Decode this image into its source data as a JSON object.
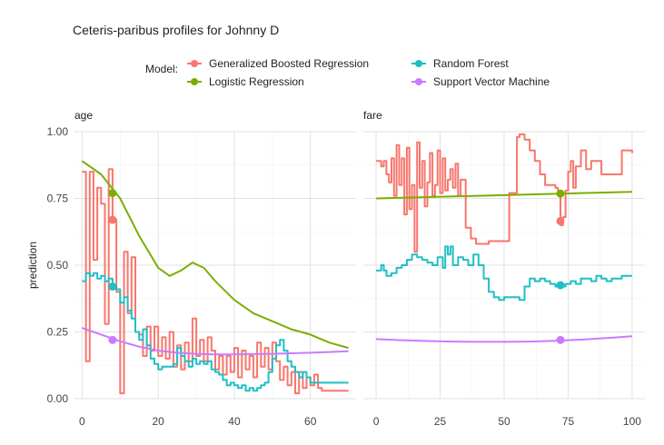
{
  "chart_data": {
    "type": "line",
    "title": "Ceteris-paribus profiles for Johnny D",
    "ylabel": "prediction",
    "legend": {
      "title": "Model:",
      "placement": "top",
      "entries": [
        {
          "name": "Generalized Boosted Regression",
          "color": "#F8766D"
        },
        {
          "name": "Random Forest",
          "color": "#1FBFC4"
        },
        {
          "name": "Logistic Regression",
          "color": "#7CAE00"
        },
        {
          "name": "Support Vector Machine",
          "color": "#C77CFF"
        }
      ]
    },
    "ylim": [
      0,
      1
    ],
    "yticks": [
      0,
      0.25,
      0.5,
      0.75,
      1
    ],
    "ytick_labels": [
      "0.00",
      "0.25",
      "0.50",
      "0.75",
      "1.00"
    ],
    "grid": true,
    "panels": [
      {
        "label": "age",
        "xlim": [
          -2,
          72
        ],
        "xticks": [
          0,
          20,
          40,
          60
        ],
        "xtick_labels": [
          "0",
          "20",
          "40",
          "60"
        ],
        "observation": {
          "x": 8
        },
        "series": [
          {
            "name": "Generalized Boosted Regression",
            "step": true,
            "x": [
              0,
              1,
              2,
              3,
              4,
              5,
              6,
              7,
              8,
              9,
              10,
              11,
              12,
              13,
              14,
              15,
              16,
              17,
              18,
              19,
              20,
              21,
              22,
              23,
              24,
              25,
              26,
              27,
              28,
              29,
              30,
              31,
              32,
              33,
              34,
              35,
              36,
              37,
              38,
              39,
              40,
              41,
              42,
              43,
              44,
              45,
              46,
              47,
              48,
              49,
              50,
              51,
              52,
              53,
              54,
              55,
              56,
              57,
              58,
              59,
              60,
              61,
              62,
              63,
              64,
              65,
              66,
              67,
              68,
              69,
              70
            ],
            "y": [
              0.85,
              0.14,
              0.85,
              0.52,
              0.79,
              0.73,
              0.28,
              0.86,
              0.67,
              0.4,
              0.02,
              0.55,
              0.32,
              0.53,
              0.25,
              0.24,
              0.16,
              0.27,
              0.18,
              0.27,
              0.16,
              0.23,
              0.15,
              0.25,
              0.12,
              0.2,
              0.11,
              0.21,
              0.14,
              0.3,
              0.16,
              0.22,
              0.14,
              0.23,
              0.18,
              0.11,
              0.16,
              0.09,
              0.16,
              0.1,
              0.19,
              0.08,
              0.18,
              0.11,
              0.16,
              0.08,
              0.21,
              0.12,
              0.19,
              0.11,
              0.21,
              0.14,
              0.07,
              0.12,
              0.05,
              0.1,
              0.02,
              0.1,
              0.04,
              0.08,
              0.05,
              0.09,
              0.04,
              0.03,
              0.03,
              0.03,
              0.03,
              0.03,
              0.03,
              0.03,
              0.03
            ]
          },
          {
            "name": "Random Forest",
            "step": true,
            "x": [
              0,
              1,
              2,
              3,
              4,
              5,
              6,
              7,
              8,
              9,
              10,
              11,
              12,
              13,
              14,
              15,
              16,
              17,
              18,
              19,
              20,
              21,
              22,
              23,
              24,
              25,
              26,
              27,
              28,
              29,
              30,
              31,
              32,
              33,
              34,
              35,
              36,
              37,
              38,
              39,
              40,
              41,
              42,
              43,
              44,
              45,
              46,
              47,
              48,
              49,
              50,
              51,
              52,
              53,
              54,
              55,
              56,
              57,
              58,
              59,
              60,
              61,
              62,
              63,
              64,
              65,
              66,
              67,
              68,
              69,
              70
            ],
            "y": [
              0.44,
              0.47,
              0.46,
              0.47,
              0.45,
              0.46,
              0.44,
              0.45,
              0.42,
              0.41,
              0.36,
              0.38,
              0.33,
              0.3,
              0.25,
              0.22,
              0.26,
              0.2,
              0.15,
              0.13,
              0.11,
              0.12,
              0.12,
              0.12,
              0.13,
              0.19,
              0.16,
              0.14,
              0.12,
              0.15,
              0.13,
              0.14,
              0.13,
              0.14,
              0.11,
              0.1,
              0.09,
              0.07,
              0.05,
              0.06,
              0.05,
              0.04,
              0.05,
              0.03,
              0.04,
              0.03,
              0.04,
              0.05,
              0.06,
              0.1,
              0.15,
              0.2,
              0.22,
              0.18,
              0.14,
              0.12,
              0.1,
              0.08,
              0.1,
              0.08,
              0.06,
              0.06,
              0.06,
              0.06,
              0.06,
              0.06,
              0.06,
              0.06,
              0.06,
              0.06,
              0.06
            ]
          },
          {
            "name": "Logistic Regression",
            "step": false,
            "x": [
              0,
              5,
              10,
              15,
              20,
              23,
              26,
              29,
              32,
              35,
              40,
              45,
              50,
              55,
              60,
              65,
              70
            ],
            "y": [
              0.89,
              0.84,
              0.75,
              0.61,
              0.49,
              0.46,
              0.48,
              0.51,
              0.49,
              0.44,
              0.37,
              0.32,
              0.29,
              0.26,
              0.24,
              0.21,
              0.19
            ]
          },
          {
            "name": "Support Vector Machine",
            "step": false,
            "x": [
              0,
              5,
              10,
              15,
              20,
              25,
              30,
              35,
              40,
              45,
              50,
              55,
              60,
              65,
              70
            ],
            "y": [
              0.265,
              0.24,
              0.215,
              0.195,
              0.18,
              0.172,
              0.168,
              0.166,
              0.166,
              0.167,
              0.168,
              0.17,
              0.172,
              0.175,
              0.178
            ]
          }
        ],
        "points": [
          {
            "name": "Generalized Boosted Regression",
            "x": 8,
            "y": 0.67
          },
          {
            "name": "Random Forest",
            "x": 8,
            "y": 0.42
          },
          {
            "name": "Logistic Regression",
            "x": 8,
            "y": 0.77
          },
          {
            "name": "Support Vector Machine",
            "x": 8,
            "y": 0.22
          }
        ]
      },
      {
        "label": "fare",
        "xlim": [
          -5,
          105
        ],
        "xticks": [
          0,
          25,
          50,
          75,
          100
        ],
        "xtick_labels": [
          "0",
          "25",
          "50",
          "75",
          "100"
        ],
        "observation": {
          "x": 72
        },
        "series": [
          {
            "name": "Generalized Boosted Regression",
            "step": true,
            "x": [
              0,
              2,
              3,
              4,
              5,
              6,
              7,
              8,
              9,
              10,
              11,
              12,
              13,
              14,
              15,
              16,
              17,
              18,
              19,
              20,
              21,
              22,
              23,
              24,
              25,
              26,
              27,
              28,
              29,
              30,
              31,
              32,
              33,
              35,
              37,
              39,
              40,
              44,
              48,
              52,
              55,
              56,
              58,
              60,
              62,
              64,
              66,
              68,
              70,
              71,
              72,
              73,
              74,
              75,
              76,
              77,
              78,
              80,
              82,
              84,
              86,
              88,
              90,
              92,
              94,
              96,
              98,
              100
            ],
            "y": [
              0.89,
              0.87,
              0.89,
              0.84,
              0.81,
              0.9,
              0.76,
              0.95,
              0.8,
              0.9,
              0.69,
              0.94,
              0.71,
              0.8,
              0.55,
              0.96,
              0.79,
              0.89,
              0.72,
              0.81,
              0.92,
              0.76,
              0.8,
              0.93,
              0.77,
              0.9,
              0.78,
              0.82,
              0.86,
              0.79,
              0.88,
              0.76,
              0.82,
              0.64,
              0.6,
              0.58,
              0.58,
              0.59,
              0.59,
              0.77,
              0.98,
              0.99,
              0.97,
              0.93,
              0.89,
              0.84,
              0.8,
              0.8,
              0.79,
              0.78,
              0.65,
              0.68,
              0.78,
              0.85,
              0.89,
              0.79,
              0.87,
              0.93,
              0.86,
              0.89,
              0.89,
              0.84,
              0.84,
              0.84,
              0.84,
              0.93,
              0.93,
              0.92
            ]
          },
          {
            "name": "Random Forest",
            "step": true,
            "x": [
              0,
              2,
              3,
              4,
              6,
              8,
              10,
              12,
              14,
              16,
              18,
              20,
              22,
              24,
              26,
              27,
              28,
              29,
              30,
              32,
              34,
              36,
              38,
              40,
              42,
              44,
              46,
              48,
              50,
              52,
              54,
              56,
              58,
              60,
              62,
              64,
              66,
              68,
              70,
              72,
              74,
              76,
              78,
              80,
              82,
              84,
              86,
              88,
              90,
              92,
              94,
              96,
              98,
              100
            ],
            "y": [
              0.48,
              0.5,
              0.48,
              0.46,
              0.47,
              0.49,
              0.5,
              0.52,
              0.54,
              0.53,
              0.52,
              0.51,
              0.5,
              0.53,
              0.49,
              0.57,
              0.54,
              0.57,
              0.5,
              0.53,
              0.52,
              0.5,
              0.54,
              0.5,
              0.45,
              0.4,
              0.38,
              0.37,
              0.38,
              0.38,
              0.38,
              0.37,
              0.42,
              0.45,
              0.44,
              0.45,
              0.44,
              0.43,
              0.42,
              0.42,
              0.43,
              0.44,
              0.43,
              0.45,
              0.45,
              0.44,
              0.46,
              0.45,
              0.44,
              0.45,
              0.45,
              0.46,
              0.46,
              0.46
            ]
          },
          {
            "name": "Logistic Regression",
            "step": false,
            "x": [
              0,
              100
            ],
            "y": [
              0.75,
              0.775
            ]
          },
          {
            "name": "Support Vector Machine",
            "step": false,
            "x": [
              0,
              10,
              20,
              30,
              40,
              50,
              60,
              70,
              80,
              90,
              100
            ],
            "y": [
              0.223,
              0.219,
              0.216,
              0.214,
              0.213,
              0.213,
              0.214,
              0.217,
              0.221,
              0.227,
              0.234
            ]
          }
        ],
        "points": [
          {
            "name": "Generalized Boosted Regression",
            "x": 72,
            "y": 0.665
          },
          {
            "name": "Random Forest",
            "x": 72,
            "y": 0.425
          },
          {
            "name": "Logistic Regression",
            "x": 72,
            "y": 0.768
          },
          {
            "name": "Support Vector Machine",
            "x": 72,
            "y": 0.22
          }
        ]
      }
    ]
  }
}
